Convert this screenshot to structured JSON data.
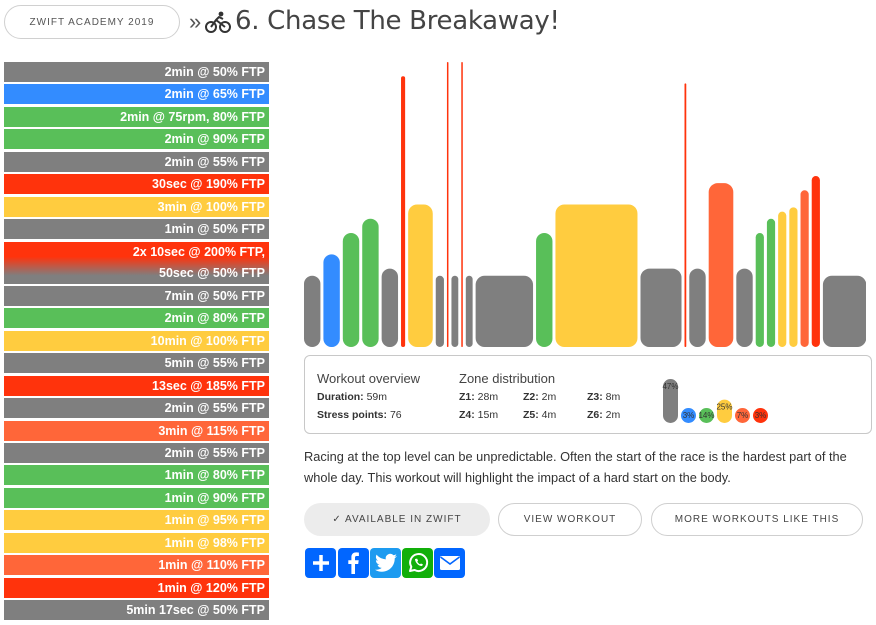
{
  "breadcrumb": {
    "parent": "ZWIFT ACADEMY 2019",
    "separator": "»"
  },
  "page_title": "6. Chase The Breakaway!",
  "zone_colors": {
    "z1": "#7f7f7f",
    "z2": "#338cff",
    "z3": "#59bf59",
    "z4": "#ffcc3f",
    "z5": "#ff6639",
    "z6": "#ff330c"
  },
  "intervals": [
    {
      "label": "2min @ 50% FTP",
      "color": "#7f7f7f"
    },
    {
      "label": "2min @ 65% FTP",
      "color": "#338cff"
    },
    {
      "label": "2min @ 75rpm, 80% FTP",
      "color": "#59bf59"
    },
    {
      "label": "2min @ 90% FTP",
      "color": "#59bf59"
    },
    {
      "label": "2min @ 55% FTP",
      "color": "#7f7f7f"
    },
    {
      "label": "30sec @ 190% FTP",
      "color": "#ff330c"
    },
    {
      "label": "3min @ 100% FTP",
      "color": "#ffcc3f"
    },
    {
      "label": "1min @ 50% FTP",
      "color": "#7f7f7f"
    },
    {
      "label": "2x 10sec @ 200% FTP,",
      "label2": "50sec @ 50% FTP",
      "color": "#ff330c",
      "color2": "#7f7f7f"
    },
    {
      "label": "7min @ 50% FTP",
      "color": "#7f7f7f"
    },
    {
      "label": "2min @ 80% FTP",
      "color": "#59bf59"
    },
    {
      "label": "10min @ 100% FTP",
      "color": "#ffcc3f"
    },
    {
      "label": "5min @ 55% FTP",
      "color": "#7f7f7f"
    },
    {
      "label": "13sec @ 185% FTP",
      "color": "#ff330c"
    },
    {
      "label": "2min @ 55% FTP",
      "color": "#7f7f7f"
    },
    {
      "label": "3min @ 115% FTP",
      "color": "#ff6639"
    },
    {
      "label": "2min @ 55% FTP",
      "color": "#7f7f7f"
    },
    {
      "label": "1min @ 80% FTP",
      "color": "#59bf59"
    },
    {
      "label": "1min @ 90% FTP",
      "color": "#59bf59"
    },
    {
      "label": "1min @ 95% FTP",
      "color": "#ffcc3f"
    },
    {
      "label": "1min @ 98% FTP",
      "color": "#ffcc3f"
    },
    {
      "label": "1min @ 110% FTP",
      "color": "#ff6639"
    },
    {
      "label": "1min @ 120% FTP",
      "color": "#ff330c"
    },
    {
      "label": "5min 17sec @ 50% FTP",
      "color": "#7f7f7f"
    }
  ],
  "workout_profile": {
    "blocks": [
      {
        "duration_s": 120,
        "ftp": 50,
        "zone": "z1"
      },
      {
        "duration_s": 120,
        "ftp": 65,
        "zone": "z2"
      },
      {
        "duration_s": 120,
        "ftp": 80,
        "zone": "z3"
      },
      {
        "duration_s": 120,
        "ftp": 90,
        "zone": "z3"
      },
      {
        "duration_s": 120,
        "ftp": 55,
        "zone": "z1"
      },
      {
        "duration_s": 30,
        "ftp": 190,
        "zone": "z6"
      },
      {
        "duration_s": 180,
        "ftp": 100,
        "zone": "z4"
      },
      {
        "duration_s": 60,
        "ftp": 50,
        "zone": "z1"
      },
      {
        "duration_s": 10,
        "ftp": 200,
        "zone": "z6"
      },
      {
        "duration_s": 50,
        "ftp": 50,
        "zone": "z1"
      },
      {
        "duration_s": 10,
        "ftp": 200,
        "zone": "z6"
      },
      {
        "duration_s": 50,
        "ftp": 50,
        "zone": "z1"
      },
      {
        "duration_s": 420,
        "ftp": 50,
        "zone": "z1"
      },
      {
        "duration_s": 120,
        "ftp": 80,
        "zone": "z3"
      },
      {
        "duration_s": 600,
        "ftp": 100,
        "zone": "z4"
      },
      {
        "duration_s": 300,
        "ftp": 55,
        "zone": "z1"
      },
      {
        "duration_s": 13,
        "ftp": 185,
        "zone": "z6"
      },
      {
        "duration_s": 120,
        "ftp": 55,
        "zone": "z1"
      },
      {
        "duration_s": 180,
        "ftp": 115,
        "zone": "z5"
      },
      {
        "duration_s": 120,
        "ftp": 55,
        "zone": "z1"
      },
      {
        "duration_s": 60,
        "ftp": 80,
        "zone": "z3"
      },
      {
        "duration_s": 60,
        "ftp": 90,
        "zone": "z3"
      },
      {
        "duration_s": 60,
        "ftp": 95,
        "zone": "z4"
      },
      {
        "duration_s": 60,
        "ftp": 98,
        "zone": "z4"
      },
      {
        "duration_s": 60,
        "ftp": 110,
        "zone": "z5"
      },
      {
        "duration_s": 60,
        "ftp": 120,
        "zone": "z6"
      },
      {
        "duration_s": 317,
        "ftp": 50,
        "zone": "z1"
      }
    ],
    "ftp_max": 200
  },
  "overview": {
    "title": "Workout overview",
    "duration_label": "Duration:",
    "duration_value": "59m",
    "stress_label": "Stress points:",
    "stress_value": "76"
  },
  "zone_distribution": {
    "title": "Zone distribution",
    "zones": [
      {
        "label": "Z1:",
        "value": "28m",
        "pct": "47%",
        "pct_value": 47,
        "color": "#7f7f7f"
      },
      {
        "label": "Z2:",
        "value": "2m",
        "pct": "3%",
        "pct_value": 3,
        "color": "#338cff"
      },
      {
        "label": "Z3:",
        "value": "8m",
        "pct": "14%",
        "pct_value": 14,
        "color": "#59bf59"
      },
      {
        "label": "Z4:",
        "value": "15m",
        "pct": "25%",
        "pct_value": 25,
        "color": "#ffcc3f"
      },
      {
        "label": "Z5:",
        "value": "4m",
        "pct": "7%",
        "pct_value": 7,
        "color": "#ff6639"
      },
      {
        "label": "Z6:",
        "value": "2m",
        "pct": "3%",
        "pct_value": 3,
        "color": "#ff330c"
      }
    ]
  },
  "description": "Racing at the top level can be unpredictable. Often the start of the race is the hardest part of the whole day. This workout will highlight the impact of a hard start on the body.",
  "actions": {
    "available": "✓ AVAILABLE IN ZWIFT",
    "view": "VIEW WORKOUT",
    "more": "MORE WORKOUTS LIKE THIS"
  },
  "share": [
    {
      "name": "share",
      "color": "#0166ff",
      "icon": "plus-icon"
    },
    {
      "name": "facebook",
      "color": "#0166ff",
      "icon": "facebook-icon"
    },
    {
      "name": "twitter",
      "color": "#1d9bf0",
      "icon": "twitter-icon"
    },
    {
      "name": "whatsapp",
      "color": "#12af0a",
      "icon": "whatsapp-icon"
    },
    {
      "name": "email",
      "color": "#0166ff",
      "icon": "envelope-icon"
    }
  ]
}
